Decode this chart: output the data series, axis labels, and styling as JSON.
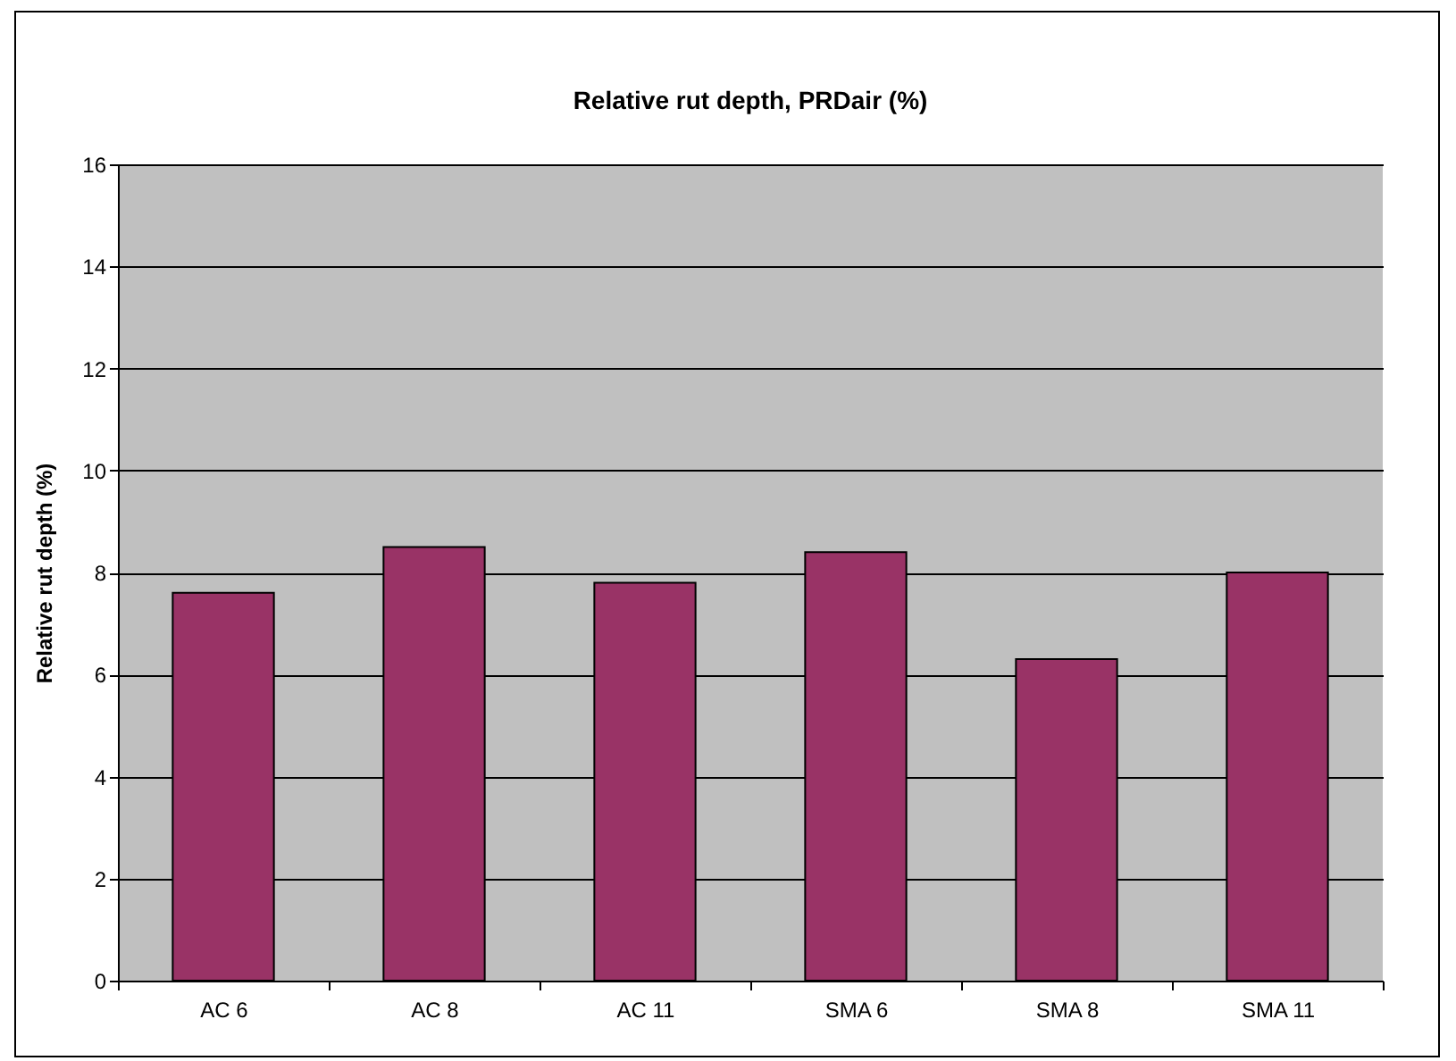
{
  "chart_data": {
    "type": "bar",
    "title": "Relative rut depth, PRDair (%)",
    "ylabel": "Relative rut depth (%)",
    "categories": [
      "AC 6",
      "AC 8",
      "AC 11",
      "SMA 6",
      "SMA 8",
      "SMA 11"
    ],
    "values": [
      7.6,
      8.5,
      7.8,
      8.4,
      6.3,
      8.0
    ],
    "color": "#993366",
    "ylim": [
      0,
      16
    ],
    "yticks": [
      0,
      2,
      4,
      6,
      8,
      10,
      12,
      14,
      16
    ],
    "grid": "y"
  }
}
